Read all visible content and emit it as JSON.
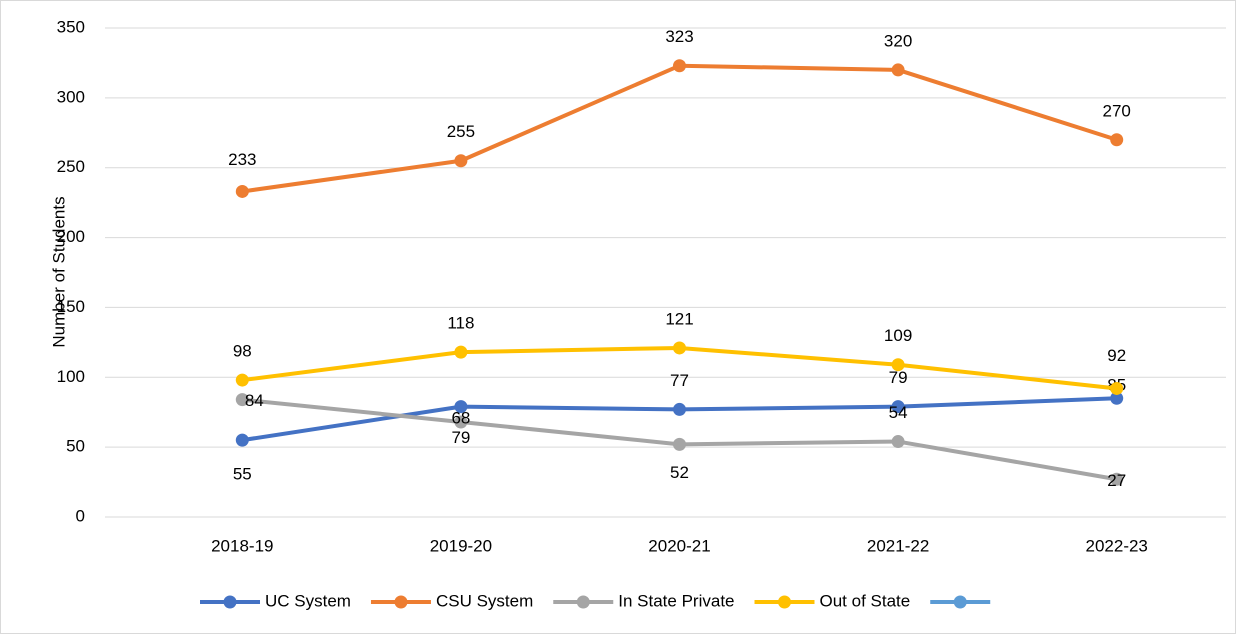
{
  "chart_data": {
    "type": "line",
    "y_label": "Number of Students",
    "categories": [
      "2018-19",
      "2019-20",
      "2020-21",
      "2021-22",
      "2022-23"
    ],
    "series": [
      {
        "name": "UC System",
        "color": "#4472c4",
        "values": [
          55,
          79,
          77,
          79,
          85
        ]
      },
      {
        "name": "CSU System",
        "color": "#ed7d31",
        "values": [
          233,
          255,
          323,
          320,
          270
        ]
      },
      {
        "name": "In State Private",
        "color": "#a5a5a5",
        "values": [
          84,
          68,
          52,
          54,
          27
        ]
      },
      {
        "name": "Out of State",
        "color": "#ffc000",
        "values": [
          98,
          118,
          121,
          109,
          92
        ]
      },
      {
        "name": null,
        "color": "#5b9bd5",
        "values": [
          null,
          null,
          null,
          null,
          null
        ]
      }
    ],
    "ylim": [
      0,
      350
    ],
    "yticks": [
      0,
      50,
      100,
      150,
      200,
      250,
      300,
      350
    ],
    "grid": true,
    "legend": "bottom"
  }
}
